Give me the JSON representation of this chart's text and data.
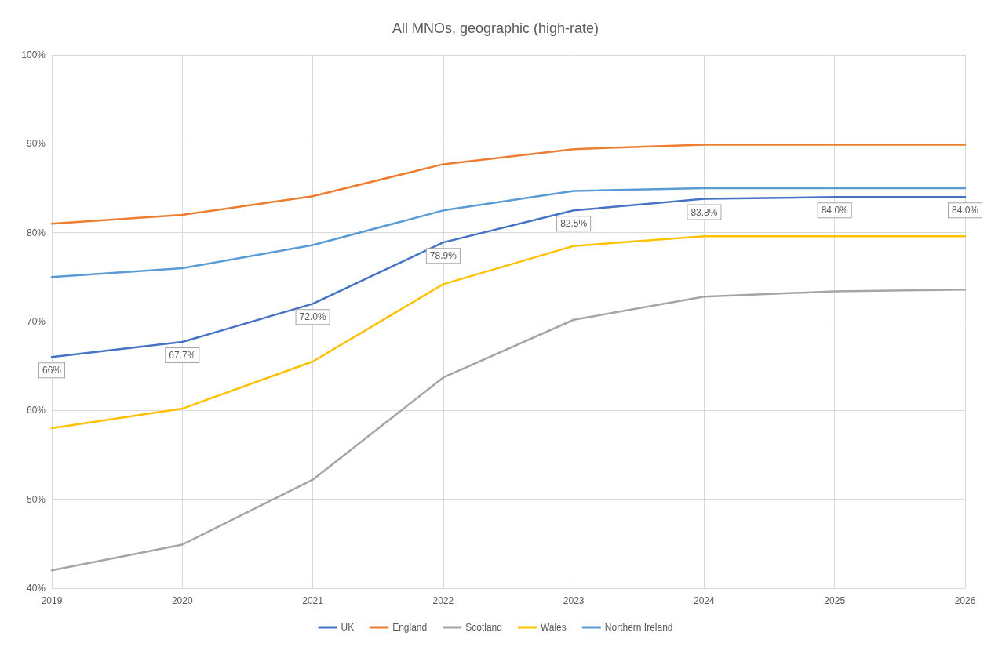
{
  "chart_data": {
    "type": "line",
    "title": "All MNOs, geographic (high-rate)",
    "x": [
      2019,
      2020,
      2021,
      2022,
      2023,
      2024,
      2025,
      2026
    ],
    "xlim": [
      2019,
      2026
    ],
    "xticks": [
      2019,
      2020,
      2021,
      2022,
      2023,
      2024,
      2025,
      2026
    ],
    "ylim": [
      40,
      100
    ],
    "yticks": [
      {
        "value": 40,
        "label": "40%"
      },
      {
        "value": 50,
        "label": "50%"
      },
      {
        "value": 60,
        "label": "60%"
      },
      {
        "value": 70,
        "label": "70%"
      },
      {
        "value": 80,
        "label": "80%"
      },
      {
        "value": 90,
        "label": "90%"
      },
      {
        "value": 100,
        "label": "100%"
      }
    ],
    "series": [
      {
        "name": "UK",
        "color": "#4472c4",
        "values": [
          66,
          67.7,
          72.0,
          78.9,
          82.5,
          83.8,
          84.0,
          84.0
        ],
        "value_labels": [
          "66%",
          "67.7%",
          "72.0%",
          "78.9%",
          "82.5%",
          "83.8%",
          "84.0%",
          "84.0%"
        ]
      },
      {
        "name": "England",
        "color": "#ed7d31",
        "values": [
          81.0,
          82.0,
          84.1,
          87.7,
          89.4,
          89.9,
          89.9,
          89.9
        ]
      },
      {
        "name": "Scotland",
        "color": "#a5a5a5",
        "values": [
          42.0,
          44.9,
          52.2,
          63.7,
          70.2,
          72.8,
          73.4,
          73.6
        ]
      },
      {
        "name": "Wales",
        "color": "#ffc000",
        "values": [
          58.0,
          60.2,
          65.5,
          74.2,
          78.5,
          79.6,
          79.6,
          79.6
        ]
      },
      {
        "name": "Northern Ireland",
        "color": "#5b9bd5",
        "values": [
          75.0,
          76.0,
          78.6,
          82.5,
          84.7,
          85.0,
          85.0,
          85.0
        ]
      }
    ],
    "grid": true,
    "legend": "bottom",
    "marker": "none",
    "line_style": "solid"
  }
}
